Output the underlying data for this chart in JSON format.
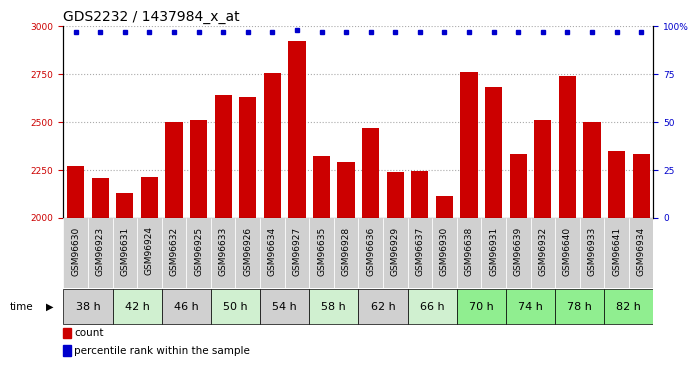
{
  "title": "GDS2232 / 1437984_x_at",
  "samples": [
    "GSM96630",
    "GSM96923",
    "GSM96631",
    "GSM96924",
    "GSM96632",
    "GSM96925",
    "GSM96633",
    "GSM96926",
    "GSM96634",
    "GSM96927",
    "GSM96635",
    "GSM96928",
    "GSM96636",
    "GSM96929",
    "GSM96637",
    "GSM96930",
    "GSM96638",
    "GSM96931",
    "GSM96639",
    "GSM96932",
    "GSM96640",
    "GSM96933",
    "GSM96641",
    "GSM96934"
  ],
  "counts": [
    2270,
    2205,
    2130,
    2210,
    2500,
    2510,
    2640,
    2630,
    2755,
    2920,
    2320,
    2290,
    2470,
    2240,
    2245,
    2110,
    2760,
    2680,
    2330,
    2510,
    2740,
    2500,
    2350,
    2330
  ],
  "percentile_ranks": [
    97,
    97,
    97,
    97,
    97,
    97,
    97,
    97,
    97,
    98,
    97,
    97,
    97,
    97,
    97,
    97,
    97,
    97,
    97,
    97,
    97,
    97,
    97,
    97
  ],
  "time_groups": [
    {
      "label": "38 h",
      "indices": [
        0,
        1
      ],
      "color": "#d0d0d0"
    },
    {
      "label": "42 h",
      "indices": [
        2,
        3
      ],
      "color": "#d0f0d0"
    },
    {
      "label": "46 h",
      "indices": [
        4,
        5
      ],
      "color": "#d0d0d0"
    },
    {
      "label": "50 h",
      "indices": [
        6,
        7
      ],
      "color": "#d0f0d0"
    },
    {
      "label": "54 h",
      "indices": [
        8,
        9
      ],
      "color": "#d0d0d0"
    },
    {
      "label": "58 h",
      "indices": [
        10,
        11
      ],
      "color": "#d0f0d0"
    },
    {
      "label": "62 h",
      "indices": [
        12,
        13
      ],
      "color": "#d0d0d0"
    },
    {
      "label": "66 h",
      "indices": [
        14,
        15
      ],
      "color": "#d0f0d0"
    },
    {
      "label": "70 h",
      "indices": [
        16,
        17
      ],
      "color": "#90ee90"
    },
    {
      "label": "74 h",
      "indices": [
        18,
        19
      ],
      "color": "#90ee90"
    },
    {
      "label": "78 h",
      "indices": [
        20,
        21
      ],
      "color": "#90ee90"
    },
    {
      "label": "82 h",
      "indices": [
        22,
        23
      ],
      "color": "#90ee90"
    }
  ],
  "bar_color": "#cc0000",
  "dot_color": "#0000cc",
  "ylim": [
    2000,
    3000
  ],
  "yticks": [
    2000,
    2250,
    2500,
    2750,
    3000
  ],
  "y2lim": [
    0,
    100
  ],
  "y2ticks": [
    0,
    25,
    50,
    75,
    100
  ],
  "y2ticklabels": [
    "0",
    "25",
    "50",
    "75",
    "100%"
  ],
  "bg_color": "#ffffff",
  "grid_color": "#aaaaaa",
  "title_fontsize": 10,
  "tick_fontsize": 6.5,
  "label_fontsize": 7.5,
  "time_fontsize": 8
}
